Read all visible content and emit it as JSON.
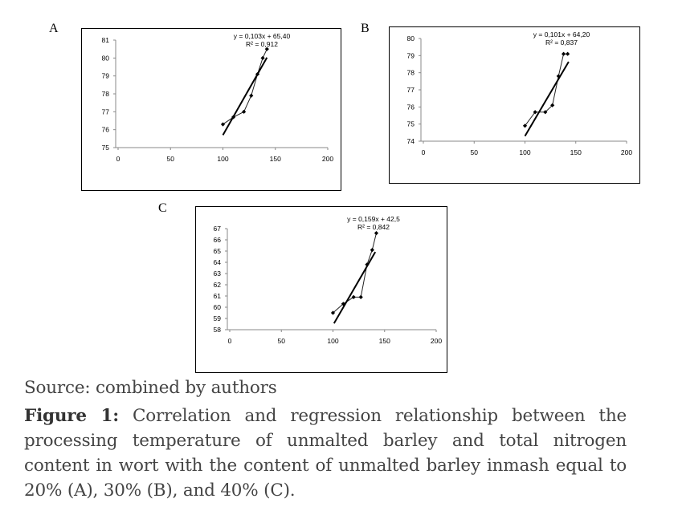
{
  "panel_labels": [
    "A",
    "B",
    "C"
  ],
  "chart_data": [
    {
      "type": "scatter",
      "title": "",
      "xlabel": "",
      "ylabel": "",
      "xlim": [
        0,
        200
      ],
      "ylim": [
        75,
        81
      ],
      "x_ticks": [
        0,
        50,
        100,
        150,
        200
      ],
      "y_ticks": [
        75,
        76,
        77,
        78,
        79,
        80,
        81
      ],
      "grid": false,
      "series": [
        {
          "points": [
            [
              100,
              76.3
            ],
            [
              110,
              76.7
            ],
            [
              120,
              77.0
            ],
            [
              127,
              77.9
            ],
            [
              133,
              79.1
            ],
            [
              138,
              80.0
            ],
            [
              142,
              80.5
            ]
          ]
        }
      ],
      "trendline": {
        "slope": 0.103,
        "intercept": 65.4,
        "x_range": [
          100,
          142
        ]
      },
      "equation": "y = 0,103x + 65,40",
      "r2": "R² = 0,912"
    },
    {
      "type": "scatter",
      "title": "",
      "xlabel": "",
      "ylabel": "",
      "xlim": [
        0,
        200
      ],
      "ylim": [
        74,
        80
      ],
      "x_ticks": [
        0,
        50,
        100,
        150,
        200
      ],
      "y_ticks": [
        74,
        75,
        76,
        77,
        78,
        79,
        80
      ],
      "grid": false,
      "series": [
        {
          "points": [
            [
              100,
              74.9
            ],
            [
              110,
              75.7
            ],
            [
              120,
              75.7
            ],
            [
              127,
              76.1
            ],
            [
              133,
              77.8
            ],
            [
              138,
              79.1
            ],
            [
              142,
              79.1
            ]
          ]
        }
      ],
      "trendline": {
        "slope": 0.101,
        "intercept": 64.2,
        "x_range": [
          100,
          143
        ]
      },
      "equation": "y = 0,101x + 64,20",
      "r2": "R² = 0,837"
    },
    {
      "type": "scatter",
      "title": "",
      "xlabel": "",
      "ylabel": "",
      "xlim": [
        0,
        200
      ],
      "ylim": [
        58,
        67
      ],
      "x_ticks": [
        0,
        50,
        100,
        150,
        200
      ],
      "y_ticks": [
        58,
        59,
        60,
        61,
        62,
        63,
        64,
        65,
        66,
        67
      ],
      "grid": false,
      "series": [
        {
          "points": [
            [
              100,
              59.5
            ],
            [
              110,
              60.3
            ],
            [
              120,
              60.9
            ],
            [
              127,
              60.9
            ],
            [
              133,
              63.8
            ],
            [
              138,
              65.1
            ],
            [
              142,
              66.6
            ]
          ]
        }
      ],
      "trendline": {
        "slope": 0.159,
        "intercept": 42.5,
        "x_range": [
          101,
          141
        ]
      },
      "equation": "y = 0,159x + 42,5",
      "r2": "R² = 0,842"
    }
  ],
  "caption": {
    "source": "Source: combined by authors",
    "figure_label": "Figure 1:",
    "figure_text": " Correlation and regression relationship between the processing temperature of unmalted barley and total nitrogen content in wort with the content of unmalted barley inmash equal to 20% (A), 30% (B), and 40% (C)."
  }
}
